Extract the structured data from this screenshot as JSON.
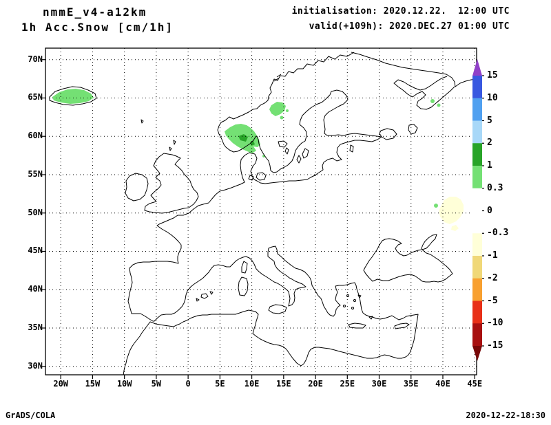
{
  "header": {
    "model": "nmmE_v4-a12km",
    "field": "1h Acc.Snow [cm/1h]",
    "init": "initialisation: 2020.12.22.  12:00 UTC",
    "valid": "valid(+109h): 2020.DEC.27 01:00 UTC"
  },
  "footer": {
    "left": "GrADS/COLA",
    "right": "2020-12-22-18:30"
  },
  "palette": {
    "snow_light": "#74e074",
    "snow_dark": "#28a428",
    "neg_light": "#ffffd8",
    "coast": "#000000"
  },
  "chart_data": {
    "type": "heatmap",
    "title": "1h Acc.Snow [cm/1h]",
    "model": "nmmE_v4-a12km",
    "initialisation": "2020.12.22. 12:00 UTC",
    "valid_time": "2020.DEC.27 01:00 UTC",
    "lead_hours": 109,
    "units": "cm/1h",
    "projection": "latlon",
    "lon_range": [
      -22.4,
      45.3
    ],
    "lat_range": [
      28.9,
      71.5
    ],
    "grid": "dotted graticule every 5 degrees",
    "x_axis": {
      "ticks": [
        {
          "value": -20,
          "label": "20W"
        },
        {
          "value": -15,
          "label": "15W"
        },
        {
          "value": -10,
          "label": "10W"
        },
        {
          "value": -5,
          "label": "5W"
        },
        {
          "value": 0,
          "label": "0"
        },
        {
          "value": 5,
          "label": "5E"
        },
        {
          "value": 10,
          "label": "10E"
        },
        {
          "value": 15,
          "label": "15E"
        },
        {
          "value": 20,
          "label": "20E"
        },
        {
          "value": 25,
          "label": "25E"
        },
        {
          "value": 30,
          "label": "30E"
        },
        {
          "value": 35,
          "label": "35E"
        },
        {
          "value": 40,
          "label": "40E"
        },
        {
          "value": 45,
          "label": "45E"
        }
      ]
    },
    "y_axis": {
      "ticks": [
        {
          "value": 30,
          "label": "30N"
        },
        {
          "value": 35,
          "label": "35N"
        },
        {
          "value": 40,
          "label": "40N"
        },
        {
          "value": 45,
          "label": "45N"
        },
        {
          "value": 50,
          "label": "50N"
        },
        {
          "value": 55,
          "label": "55N"
        },
        {
          "value": 60,
          "label": "60N"
        },
        {
          "value": 65,
          "label": "65N"
        },
        {
          "value": 70,
          "label": "70N"
        }
      ]
    },
    "colorbar": {
      "levels": [
        15,
        10,
        5,
        2,
        1,
        0.3,
        0,
        -0.3,
        -1,
        -2,
        -5,
        -10,
        -15
      ],
      "segment_colors": [
        "#3858e0",
        "#50a0f0",
        "#a8d8f8",
        "#28a428",
        "#74e074",
        "#ffffff",
        "#ffffff",
        "#ffffd8",
        "#f0d878",
        "#f8a030",
        "#e83018",
        "#a81010"
      ],
      "above_color": "#9040c8",
      "below_color": "#780808",
      "position": "right"
    },
    "shaded_regions": [
      {
        "region": "southern Norway coast (58-62N, 5-11E)",
        "level": "0.3 to 1",
        "color": "#74e074"
      },
      {
        "region": "inner southern Norway spots (59-61N, 7-9E)",
        "level": "1 to 2",
        "color": "#28a428"
      },
      {
        "region": "central Scandinavia (62.5-64.5N, 12-15E)",
        "level": "0.3 to 1",
        "color": "#74e074"
      },
      {
        "region": "Iceland (63.5-66N, 22W-15W)",
        "level": "0.3 to 1",
        "color": "#74e074"
      },
      {
        "region": "White Sea area specks (~66N, 37-39E)",
        "level": "0.3 to 1",
        "color": "#74e074"
      },
      {
        "region": "SW Russia patch (48.5-52N, 39-43E)",
        "level": "-0.3 to -1",
        "color": "#ffffd8"
      },
      {
        "region": "SW Russia speck (~51N, 38.5E)",
        "level": "0.3 to 1",
        "color": "#74e074"
      }
    ]
  }
}
